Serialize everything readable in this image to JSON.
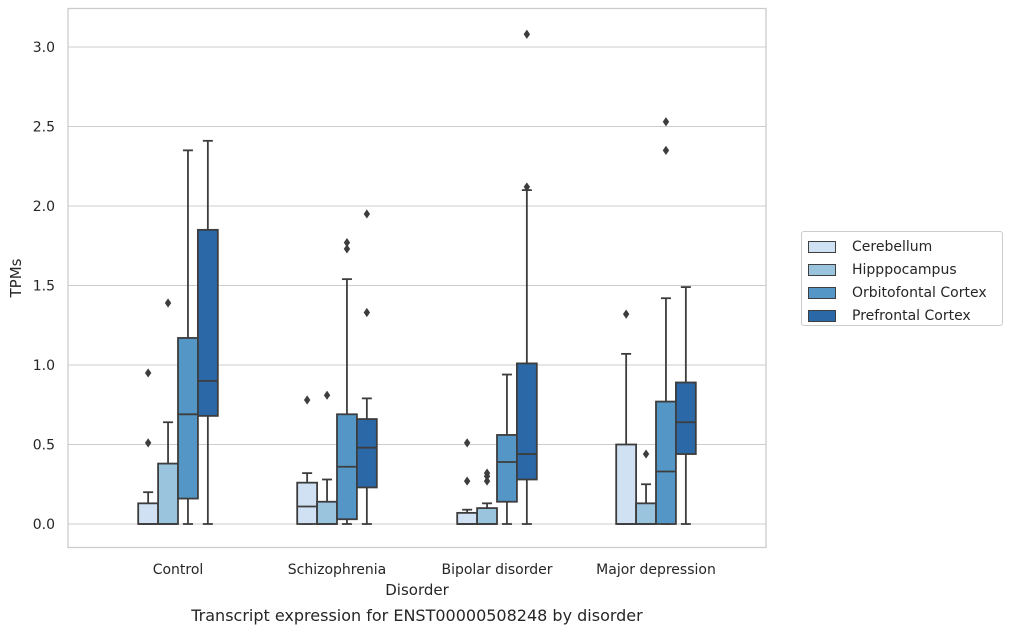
{
  "caption": "Transcript expression for ENST00000508248 by disorder",
  "chart_data": {
    "type": "box",
    "title": "",
    "xlabel": "Disorder",
    "ylabel": "TPMs",
    "ylim": [
      -0.15,
      3.25
    ],
    "yticks": [
      "0.0",
      "0.5",
      "1.0",
      "1.5",
      "2.0",
      "2.5",
      "3.0"
    ],
    "grid": "horizontal",
    "legend_position": "right",
    "categories": [
      "Control",
      "Schizophrenia",
      "Bipolar disorder",
      "Major depression"
    ],
    "series": [
      {
        "name": "Cerebellum",
        "color": "#cfe1f2",
        "boxes": [
          {
            "whisker_low": 0.0,
            "q1": 0.0,
            "median": 0.0,
            "q3": 0.13,
            "whisker_high": 0.2,
            "outliers": [
              0.51,
              0.95
            ]
          },
          {
            "whisker_low": 0.0,
            "q1": 0.0,
            "median": 0.11,
            "q3": 0.26,
            "whisker_high": 0.32,
            "outliers": [
              0.78
            ]
          },
          {
            "whisker_low": 0.0,
            "q1": 0.0,
            "median": 0.0,
            "q3": 0.07,
            "whisker_high": 0.09,
            "outliers": [
              0.27,
              0.51
            ]
          },
          {
            "whisker_low": 0.0,
            "q1": 0.0,
            "median": 0.0,
            "q3": 0.5,
            "whisker_high": 1.07,
            "outliers": [
              1.32
            ]
          }
        ]
      },
      {
        "name": "Hipppocampus",
        "color": "#9ac3de",
        "boxes": [
          {
            "whisker_low": 0.0,
            "q1": 0.0,
            "median": 0.0,
            "q3": 0.38,
            "whisker_high": 0.64,
            "outliers": [
              1.39
            ]
          },
          {
            "whisker_low": 0.0,
            "q1": 0.0,
            "median": 0.0,
            "q3": 0.14,
            "whisker_high": 0.28,
            "outliers": [
              0.81
            ]
          },
          {
            "whisker_low": 0.0,
            "q1": 0.0,
            "median": 0.0,
            "q3": 0.1,
            "whisker_high": 0.13,
            "outliers": [
              0.27,
              0.3,
              0.32
            ]
          },
          {
            "whisker_low": 0.0,
            "q1": 0.0,
            "median": 0.0,
            "q3": 0.13,
            "whisker_high": 0.25,
            "outliers": [
              0.44
            ]
          }
        ]
      },
      {
        "name": "Orbitofontal Cortex",
        "color": "#5497c7",
        "boxes": [
          {
            "whisker_low": 0.0,
            "q1": 0.16,
            "median": 0.69,
            "q3": 1.17,
            "whisker_high": 2.35,
            "outliers": []
          },
          {
            "whisker_low": 0.0,
            "q1": 0.03,
            "median": 0.36,
            "q3": 0.69,
            "whisker_high": 1.54,
            "outliers": [
              1.73,
              1.77
            ]
          },
          {
            "whisker_low": 0.0,
            "q1": 0.14,
            "median": 0.39,
            "q3": 0.56,
            "whisker_high": 0.94,
            "outliers": []
          },
          {
            "whisker_low": 0.0,
            "q1": 0.0,
            "median": 0.33,
            "q3": 0.77,
            "whisker_high": 1.42,
            "outliers": [
              2.35,
              2.53
            ]
          }
        ]
      },
      {
        "name": "Prefrontal Cortex",
        "color": "#2b68a8",
        "boxes": [
          {
            "whisker_low": 0.0,
            "q1": 0.68,
            "median": 0.9,
            "q3": 1.85,
            "whisker_high": 2.41,
            "outliers": []
          },
          {
            "whisker_low": 0.0,
            "q1": 0.23,
            "median": 0.48,
            "q3": 0.66,
            "whisker_high": 0.79,
            "outliers": [
              1.33,
              1.95
            ]
          },
          {
            "whisker_low": 0.0,
            "q1": 0.28,
            "median": 0.44,
            "q3": 1.01,
            "whisker_high": 2.1,
            "outliers": [
              2.12,
              3.08
            ]
          },
          {
            "whisker_low": 0.0,
            "q1": 0.44,
            "median": 0.64,
            "q3": 0.89,
            "whisker_high": 1.49,
            "outliers": []
          }
        ]
      }
    ]
  }
}
